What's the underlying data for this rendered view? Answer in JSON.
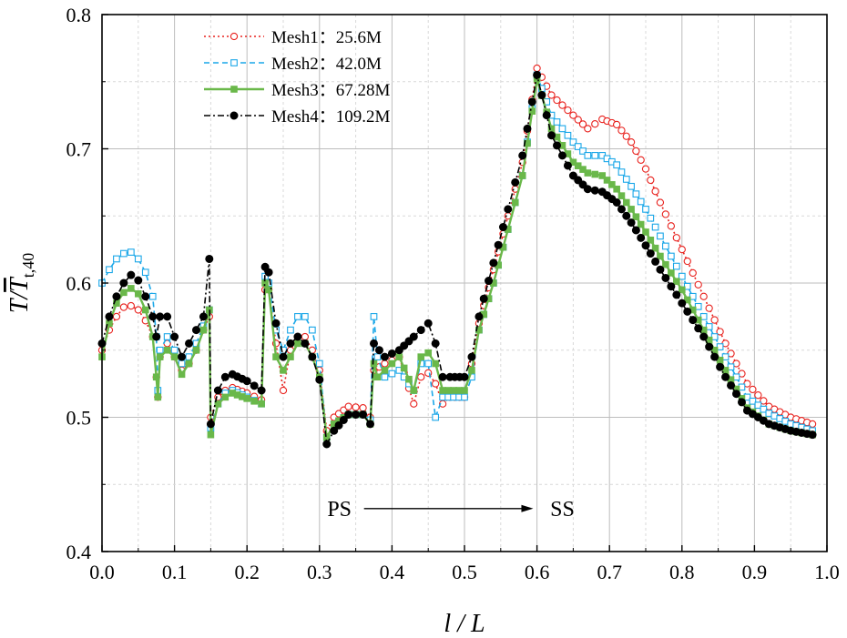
{
  "chart_data": {
    "type": "line",
    "xlabel": "l / L",
    "ylabel_main": "T/",
    "ylabel_var": "T",
    "ylabel_sub": "t,40",
    "xlim": [
      0.0,
      1.0
    ],
    "ylim": [
      0.4,
      0.8
    ],
    "xticks": [
      "0.0",
      "0.1",
      "0.2",
      "0.3",
      "0.4",
      "0.5",
      "0.6",
      "0.7",
      "0.8",
      "0.9",
      "1.0"
    ],
    "yticks": [
      "0.4",
      "0.5",
      "0.6",
      "0.7",
      "0.8"
    ],
    "grid": true,
    "legend_position": "top-left",
    "annotation": {
      "left": "PS",
      "right": "SS",
      "y": 0.432,
      "x_left": 0.33,
      "x_right": 0.63
    },
    "series": [
      {
        "name": "Mesh1：25.6M",
        "color": "#e8211d",
        "dash": "2,3",
        "marker": "open-circle",
        "points": [
          [
            0.0,
            0.55
          ],
          [
            0.01,
            0.565
          ],
          [
            0.02,
            0.575
          ],
          [
            0.03,
            0.582
          ],
          [
            0.04,
            0.583
          ],
          [
            0.05,
            0.58
          ],
          [
            0.06,
            0.572
          ],
          [
            0.07,
            0.56
          ],
          [
            0.075,
            0.53
          ],
          [
            0.077,
            0.515
          ],
          [
            0.08,
            0.545
          ],
          [
            0.09,
            0.555
          ],
          [
            0.1,
            0.545
          ],
          [
            0.11,
            0.535
          ],
          [
            0.12,
            0.54
          ],
          [
            0.13,
            0.55
          ],
          [
            0.14,
            0.565
          ],
          [
            0.148,
            0.575
          ],
          [
            0.15,
            0.5
          ],
          [
            0.16,
            0.515
          ],
          [
            0.17,
            0.52
          ],
          [
            0.18,
            0.522
          ],
          [
            0.2,
            0.518
          ],
          [
            0.22,
            0.513
          ],
          [
            0.225,
            0.595
          ],
          [
            0.23,
            0.595
          ],
          [
            0.24,
            0.555
          ],
          [
            0.25,
            0.52
          ],
          [
            0.26,
            0.55
          ],
          [
            0.27,
            0.56
          ],
          [
            0.28,
            0.56
          ],
          [
            0.29,
            0.55
          ],
          [
            0.3,
            0.535
          ],
          [
            0.31,
            0.49
          ],
          [
            0.32,
            0.5
          ],
          [
            0.34,
            0.508
          ],
          [
            0.36,
            0.507
          ],
          [
            0.37,
            0.5
          ],
          [
            0.375,
            0.535
          ],
          [
            0.39,
            0.54
          ],
          [
            0.41,
            0.545
          ],
          [
            0.43,
            0.51
          ],
          [
            0.44,
            0.53
          ],
          [
            0.45,
            0.533
          ],
          [
            0.46,
            0.525
          ],
          [
            0.47,
            0.51
          ],
          [
            0.48,
            0.515
          ],
          [
            0.5,
            0.515
          ],
          [
            0.51,
            0.54
          ],
          [
            0.52,
            0.57
          ],
          [
            0.54,
            0.61
          ],
          [
            0.56,
            0.65
          ],
          [
            0.58,
            0.69
          ],
          [
            0.6,
            0.76
          ],
          [
            0.62,
            0.74
          ],
          [
            0.65,
            0.725
          ],
          [
            0.67,
            0.715
          ],
          [
            0.69,
            0.722
          ],
          [
            0.71,
            0.718
          ],
          [
            0.73,
            0.705
          ],
          [
            0.75,
            0.685
          ],
          [
            0.77,
            0.66
          ],
          [
            0.8,
            0.625
          ],
          [
            0.83,
            0.59
          ],
          [
            0.86,
            0.555
          ],
          [
            0.89,
            0.525
          ],
          [
            0.92,
            0.508
          ],
          [
            0.95,
            0.5
          ],
          [
            0.98,
            0.495
          ]
        ]
      },
      {
        "name": "Mesh2：42.0M",
        "color": "#1aa7e8",
        "dash": "6,4",
        "marker": "open-square",
        "points": [
          [
            0.0,
            0.6
          ],
          [
            0.01,
            0.61
          ],
          [
            0.02,
            0.618
          ],
          [
            0.03,
            0.622
          ],
          [
            0.04,
            0.623
          ],
          [
            0.05,
            0.618
          ],
          [
            0.06,
            0.608
          ],
          [
            0.07,
            0.59
          ],
          [
            0.075,
            0.56
          ],
          [
            0.077,
            0.52
          ],
          [
            0.08,
            0.55
          ],
          [
            0.09,
            0.56
          ],
          [
            0.1,
            0.55
          ],
          [
            0.11,
            0.54
          ],
          [
            0.12,
            0.545
          ],
          [
            0.13,
            0.555
          ],
          [
            0.14,
            0.568
          ],
          [
            0.148,
            0.58
          ],
          [
            0.15,
            0.492
          ],
          [
            0.16,
            0.51
          ],
          [
            0.17,
            0.518
          ],
          [
            0.18,
            0.52
          ],
          [
            0.2,
            0.515
          ],
          [
            0.22,
            0.51
          ],
          [
            0.225,
            0.605
          ],
          [
            0.23,
            0.6
          ],
          [
            0.24,
            0.565
          ],
          [
            0.25,
            0.55
          ],
          [
            0.26,
            0.565
          ],
          [
            0.27,
            0.575
          ],
          [
            0.28,
            0.575
          ],
          [
            0.29,
            0.565
          ],
          [
            0.3,
            0.54
          ],
          [
            0.31,
            0.485
          ],
          [
            0.32,
            0.495
          ],
          [
            0.34,
            0.502
          ],
          [
            0.36,
            0.502
          ],
          [
            0.37,
            0.498
          ],
          [
            0.375,
            0.575
          ],
          [
            0.38,
            0.545
          ],
          [
            0.39,
            0.53
          ],
          [
            0.41,
            0.535
          ],
          [
            0.43,
            0.52
          ],
          [
            0.44,
            0.54
          ],
          [
            0.45,
            0.54
          ],
          [
            0.46,
            0.5
          ],
          [
            0.47,
            0.515
          ],
          [
            0.5,
            0.515
          ],
          [
            0.51,
            0.53
          ],
          [
            0.52,
            0.565
          ],
          [
            0.54,
            0.6
          ],
          [
            0.56,
            0.64
          ],
          [
            0.58,
            0.68
          ],
          [
            0.6,
            0.755
          ],
          [
            0.62,
            0.725
          ],
          [
            0.65,
            0.705
          ],
          [
            0.67,
            0.695
          ],
          [
            0.69,
            0.695
          ],
          [
            0.71,
            0.688
          ],
          [
            0.73,
            0.672
          ],
          [
            0.75,
            0.655
          ],
          [
            0.77,
            0.635
          ],
          [
            0.8,
            0.605
          ],
          [
            0.83,
            0.575
          ],
          [
            0.86,
            0.545
          ],
          [
            0.89,
            0.515
          ],
          [
            0.92,
            0.503
          ],
          [
            0.95,
            0.495
          ],
          [
            0.98,
            0.49
          ]
        ]
      },
      {
        "name": "Mesh3：67.28M",
        "color": "#6ab84a",
        "dash": "",
        "marker": "filled-square",
        "points": [
          [
            0.0,
            0.545
          ],
          [
            0.01,
            0.57
          ],
          [
            0.02,
            0.585
          ],
          [
            0.03,
            0.593
          ],
          [
            0.04,
            0.596
          ],
          [
            0.05,
            0.592
          ],
          [
            0.06,
            0.58
          ],
          [
            0.07,
            0.56
          ],
          [
            0.075,
            0.53
          ],
          [
            0.077,
            0.515
          ],
          [
            0.08,
            0.545
          ],
          [
            0.09,
            0.55
          ],
          [
            0.1,
            0.545
          ],
          [
            0.11,
            0.532
          ],
          [
            0.12,
            0.54
          ],
          [
            0.13,
            0.55
          ],
          [
            0.14,
            0.565
          ],
          [
            0.148,
            0.58
          ],
          [
            0.15,
            0.487
          ],
          [
            0.16,
            0.51
          ],
          [
            0.17,
            0.515
          ],
          [
            0.18,
            0.518
          ],
          [
            0.2,
            0.514
          ],
          [
            0.22,
            0.51
          ],
          [
            0.225,
            0.6
          ],
          [
            0.23,
            0.595
          ],
          [
            0.24,
            0.545
          ],
          [
            0.25,
            0.535
          ],
          [
            0.26,
            0.545
          ],
          [
            0.27,
            0.555
          ],
          [
            0.28,
            0.555
          ],
          [
            0.29,
            0.545
          ],
          [
            0.3,
            0.53
          ],
          [
            0.31,
            0.485
          ],
          [
            0.32,
            0.495
          ],
          [
            0.34,
            0.502
          ],
          [
            0.36,
            0.502
          ],
          [
            0.37,
            0.495
          ],
          [
            0.375,
            0.54
          ],
          [
            0.38,
            0.53
          ],
          [
            0.39,
            0.535
          ],
          [
            0.41,
            0.545
          ],
          [
            0.43,
            0.52
          ],
          [
            0.44,
            0.545
          ],
          [
            0.45,
            0.548
          ],
          [
            0.46,
            0.54
          ],
          [
            0.47,
            0.52
          ],
          [
            0.5,
            0.52
          ],
          [
            0.51,
            0.535
          ],
          [
            0.52,
            0.565
          ],
          [
            0.54,
            0.6
          ],
          [
            0.56,
            0.64
          ],
          [
            0.58,
            0.68
          ],
          [
            0.6,
            0.752
          ],
          [
            0.62,
            0.715
          ],
          [
            0.65,
            0.69
          ],
          [
            0.67,
            0.682
          ],
          [
            0.69,
            0.68
          ],
          [
            0.71,
            0.67
          ],
          [
            0.73,
            0.655
          ],
          [
            0.75,
            0.638
          ],
          [
            0.77,
            0.62
          ],
          [
            0.8,
            0.595
          ],
          [
            0.83,
            0.565
          ],
          [
            0.86,
            0.535
          ],
          [
            0.89,
            0.507
          ],
          [
            0.92,
            0.495
          ],
          [
            0.95,
            0.49
          ],
          [
            0.98,
            0.487
          ]
        ]
      },
      {
        "name": "Mesh4：109.2M",
        "color": "#000000",
        "dash": "7,3,2,3",
        "marker": "filled-circle",
        "points": [
          [
            0.0,
            0.555
          ],
          [
            0.01,
            0.575
          ],
          [
            0.02,
            0.59
          ],
          [
            0.03,
            0.6
          ],
          [
            0.04,
            0.606
          ],
          [
            0.05,
            0.602
          ],
          [
            0.06,
            0.59
          ],
          [
            0.07,
            0.575
          ],
          [
            0.075,
            0.56
          ],
          [
            0.08,
            0.575
          ],
          [
            0.09,
            0.575
          ],
          [
            0.1,
            0.56
          ],
          [
            0.11,
            0.545
          ],
          [
            0.12,
            0.555
          ],
          [
            0.13,
            0.565
          ],
          [
            0.14,
            0.575
          ],
          [
            0.148,
            0.618
          ],
          [
            0.15,
            0.495
          ],
          [
            0.16,
            0.52
          ],
          [
            0.17,
            0.53
          ],
          [
            0.18,
            0.532
          ],
          [
            0.2,
            0.527
          ],
          [
            0.22,
            0.52
          ],
          [
            0.225,
            0.612
          ],
          [
            0.23,
            0.608
          ],
          [
            0.24,
            0.57
          ],
          [
            0.25,
            0.545
          ],
          [
            0.26,
            0.555
          ],
          [
            0.27,
            0.56
          ],
          [
            0.28,
            0.555
          ],
          [
            0.29,
            0.545
          ],
          [
            0.3,
            0.528
          ],
          [
            0.31,
            0.48
          ],
          [
            0.32,
            0.49
          ],
          [
            0.34,
            0.502
          ],
          [
            0.36,
            0.502
          ],
          [
            0.37,
            0.495
          ],
          [
            0.375,
            0.555
          ],
          [
            0.39,
            0.545
          ],
          [
            0.41,
            0.55
          ],
          [
            0.43,
            0.56
          ],
          [
            0.44,
            0.565
          ],
          [
            0.45,
            0.57
          ],
          [
            0.46,
            0.555
          ],
          [
            0.47,
            0.53
          ],
          [
            0.48,
            0.53
          ],
          [
            0.5,
            0.53
          ],
          [
            0.51,
            0.545
          ],
          [
            0.52,
            0.575
          ],
          [
            0.54,
            0.615
          ],
          [
            0.56,
            0.655
          ],
          [
            0.58,
            0.695
          ],
          [
            0.6,
            0.755
          ],
          [
            0.62,
            0.71
          ],
          [
            0.65,
            0.68
          ],
          [
            0.67,
            0.67
          ],
          [
            0.69,
            0.668
          ],
          [
            0.71,
            0.66
          ],
          [
            0.73,
            0.645
          ],
          [
            0.75,
            0.628
          ],
          [
            0.77,
            0.61
          ],
          [
            0.8,
            0.585
          ],
          [
            0.83,
            0.56
          ],
          [
            0.86,
            0.53
          ],
          [
            0.89,
            0.505
          ],
          [
            0.92,
            0.495
          ],
          [
            0.95,
            0.49
          ],
          [
            0.98,
            0.487
          ]
        ]
      }
    ]
  }
}
